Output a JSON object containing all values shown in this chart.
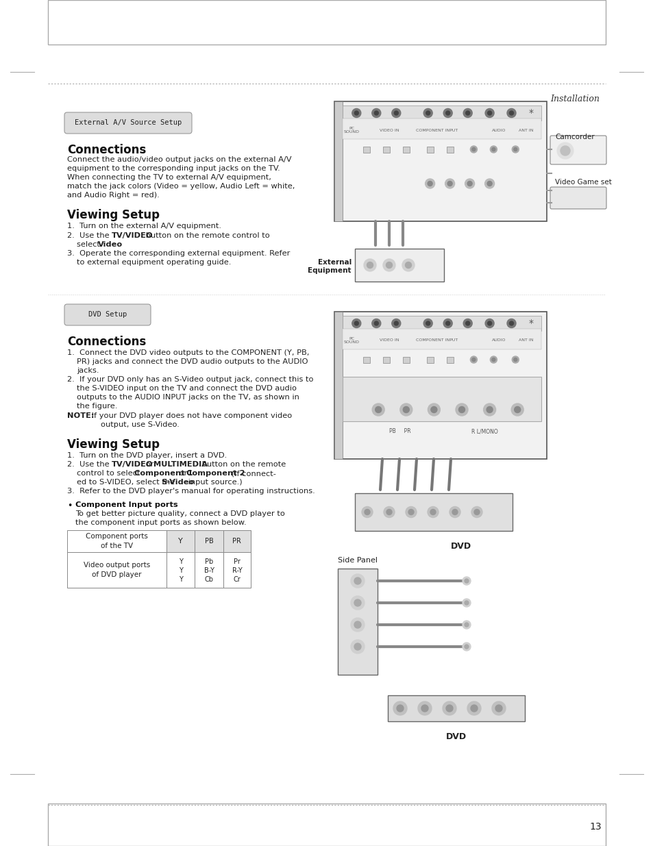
{
  "page_bg": "#ffffff",
  "header_text": "Installation",
  "footer_number": "13",
  "section1_badge": "External A/V Source Setup",
  "section1_title": "Connections",
  "section1_sub_title": "Viewing Setup",
  "section2_badge": "DVD Setup",
  "section2_title": "Connections",
  "section2_sub_title": "Viewing Setup",
  "component_bullet": "Component Input ports",
  "right_label1": "Camcorder",
  "right_label2": "Video Game set",
  "dvd_label": "DVD",
  "side_panel_label": "Side Panel"
}
